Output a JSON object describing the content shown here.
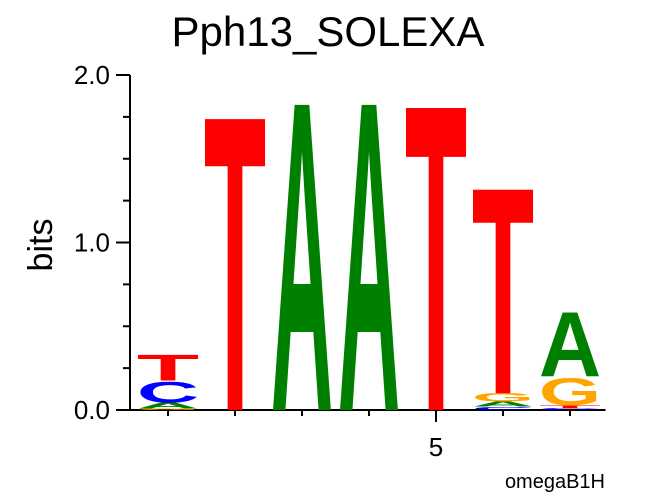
{
  "chart_data": {
    "type": "logo",
    "title": "Pph13_SOLEXA",
    "ylabel": "bits",
    "annotation": "omegaB1H",
    "x": [
      1,
      2,
      3,
      4,
      5,
      6,
      7
    ],
    "xlim": [
      0.5,
      7.5
    ],
    "xticks": [
      5
    ],
    "ylim": [
      0,
      2
    ],
    "yticks": [
      {
        "value": 0,
        "label": "0.0"
      },
      {
        "value": 1,
        "label": "1.0"
      },
      {
        "value": 2,
        "label": "2.0"
      }
    ],
    "y_minor_ticks": [
      0.25,
      0.5,
      0.75,
      1.25,
      1.5,
      1.75
    ],
    "colors": {
      "A": "#008000",
      "C": "#0000ff",
      "G": "#ffa500",
      "T": "#ff0000"
    },
    "stacks": [
      [
        {
          "letter": "G",
          "value": 0.01
        },
        {
          "letter": "A",
          "value": 0.035
        },
        {
          "letter": "C",
          "value": 0.13
        },
        {
          "letter": "T",
          "value": 0.16
        }
      ],
      [
        {
          "letter": "T",
          "value": 1.83
        }
      ],
      [
        {
          "letter": "A",
          "value": 1.92
        }
      ],
      [
        {
          "letter": "A",
          "value": 1.92
        }
      ],
      [
        {
          "letter": "T",
          "value": 1.9
        }
      ],
      [
        {
          "letter": "C",
          "value": 0.02
        },
        {
          "letter": "A",
          "value": 0.03
        },
        {
          "letter": "G",
          "value": 0.05
        },
        {
          "letter": "T",
          "value": 1.28
        }
      ],
      [
        {
          "letter": "C",
          "value": 0.01
        },
        {
          "letter": "T",
          "value": 0.02
        },
        {
          "letter": "G",
          "value": 0.17
        },
        {
          "letter": "A",
          "value": 0.4
        }
      ]
    ]
  }
}
